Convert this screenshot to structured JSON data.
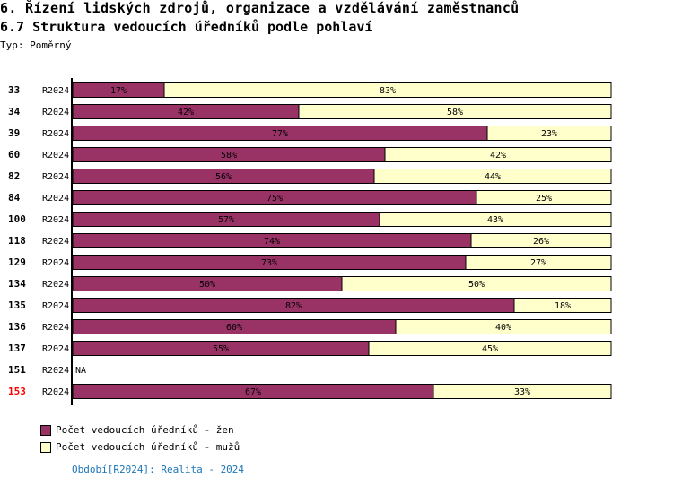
{
  "header": {
    "title": "6. Řízení lidských zdrojů, organizace a vzdělávání zaměstnanců",
    "subtitle": "6.7 Struktura vedoucích úředníků podle pohlaví",
    "type_label": "Typ: Poměrný"
  },
  "chart_data": {
    "type": "bar",
    "stacked": true,
    "orientation": "horizontal",
    "xlim": [
      0,
      100
    ],
    "categories": [
      "33",
      "34",
      "39",
      "60",
      "82",
      "84",
      "100",
      "118",
      "129",
      "134",
      "135",
      "136",
      "137",
      "151",
      "153"
    ],
    "period_labels": [
      "R2024",
      "R2024",
      "R2024",
      "R2024",
      "R2024",
      "R2024",
      "R2024",
      "R2024",
      "R2024",
      "R2024",
      "R2024",
      "R2024",
      "R2024",
      "R2024",
      "R2024"
    ],
    "highlighted_category": "153",
    "series": [
      {
        "name": "Počet vedoucích úředníků - žen",
        "color": "#993366",
        "values": [
          17,
          42,
          77,
          58,
          56,
          75,
          57,
          74,
          73,
          50,
          82,
          60,
          55,
          null,
          67
        ]
      },
      {
        "name": "Počet vedoucích úředníků - mužů",
        "color": "#ffffcc",
        "values": [
          83,
          58,
          23,
          42,
          44,
          25,
          43,
          26,
          27,
          50,
          18,
          40,
          45,
          null,
          33
        ]
      }
    ],
    "na_label": "NA",
    "legend_position": "bottom-left"
  },
  "footer": {
    "period_note": "Období[R2024]: Realita - 2024"
  }
}
